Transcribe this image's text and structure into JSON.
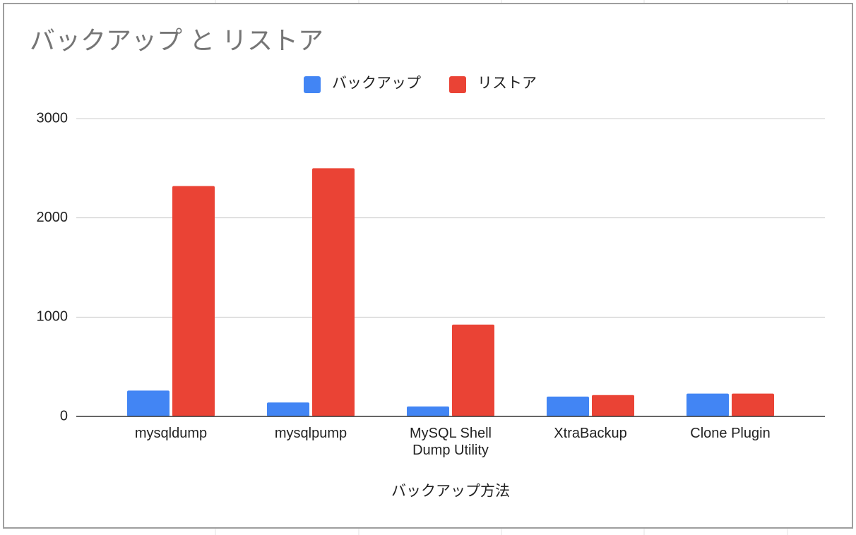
{
  "chart_data": {
    "type": "bar",
    "title": "バックアップ と リストア",
    "x_label": "バックアップ方法",
    "categories": [
      "mysqldump",
      "mysqlpump",
      "MySQL Shell Dump Utility",
      "XtraBackup",
      "Clone Plugin"
    ],
    "series": [
      {
        "name": "バックアップ",
        "color": "#4285f4",
        "values": [
          260,
          140,
          100,
          200,
          230
        ]
      },
      {
        "name": "リストア",
        "color": "#ea4335",
        "values": [
          2320,
          2500,
          925,
          215,
          230
        ]
      }
    ],
    "ylim": [
      0,
      3000
    ],
    "yticks": [
      0,
      1000,
      2000,
      3000
    ],
    "grid": true,
    "legend": "top"
  }
}
